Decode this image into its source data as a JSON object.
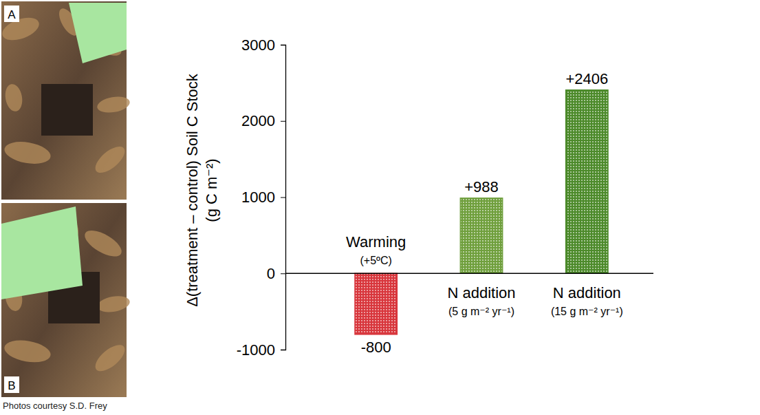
{
  "chart_data": {
    "type": "bar",
    "ylabel": "Δ(treatment – control) Soil C Stock (g C m⁻²)",
    "categories": [
      "Warming\n(+5ºC)",
      "N addition\n(5 g m⁻² yr⁻¹)",
      "N addition\n(15 g m⁻² yr⁻¹)"
    ],
    "values": [
      -800,
      988,
      2406
    ],
    "value_labels": [
      "-800",
      "+988",
      "+2406"
    ],
    "colors": [
      "#d8363c",
      "#6f9f3c",
      "#4c8a2a"
    ],
    "ylim": [
      -1000,
      3000
    ],
    "yticks": [
      -1000,
      0,
      1000,
      2000,
      3000
    ],
    "grid": false,
    "data_labels": true
  },
  "photos": {
    "labels": [
      "A",
      "B"
    ],
    "credit": "Photos courtesy S.D. Frey"
  }
}
